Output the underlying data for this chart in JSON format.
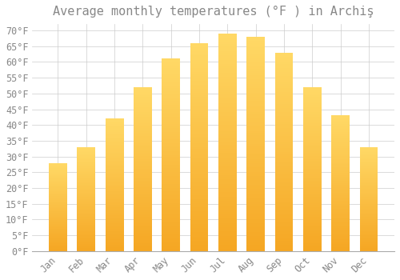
{
  "title": "Average monthly temperatures (°F ) in Archiş",
  "months": [
    "Jan",
    "Feb",
    "Mar",
    "Apr",
    "May",
    "Jun",
    "Jul",
    "Aug",
    "Sep",
    "Oct",
    "Nov",
    "Dec"
  ],
  "values": [
    28,
    33,
    42,
    52,
    61,
    66,
    69,
    68,
    63,
    52,
    43,
    33
  ],
  "bar_color_bottom": "#F5A623",
  "bar_color_top": "#FFD966",
  "background_color": "#FFFFFF",
  "grid_color": "#CCCCCC",
  "text_color": "#888888",
  "ylim": [
    0,
    72
  ],
  "yticks": [
    0,
    5,
    10,
    15,
    20,
    25,
    30,
    35,
    40,
    45,
    50,
    55,
    60,
    65,
    70
  ],
  "title_fontsize": 11,
  "tick_fontsize": 8.5
}
